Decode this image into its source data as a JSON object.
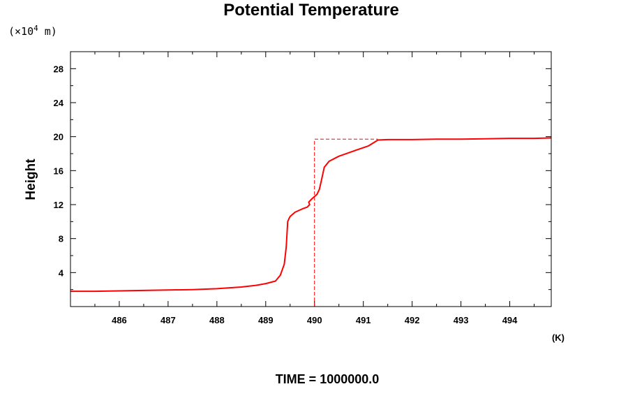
{
  "chart_data": {
    "type": "line",
    "title": "Potential Temperature",
    "ylabel": "Height",
    "y_unit_prefix": "(×10",
    "y_unit_exponent": "4",
    "y_unit_suffix": " m)",
    "x_unit": "(K)",
    "footer": "TIME = 1000000.0",
    "xlim": [
      485.0,
      494.85
    ],
    "ylim": [
      0.0,
      30.0
    ],
    "x_ticks": [
      486,
      487,
      488,
      489,
      490,
      491,
      492,
      493,
      494
    ],
    "y_ticks": [
      4,
      8,
      12,
      16,
      20,
      24,
      28
    ],
    "grid": false,
    "legend": "none",
    "series": [
      {
        "style": "solid",
        "color": "#ff0000",
        "x": [
          485.0,
          485.5,
          486.0,
          486.5,
          487.0,
          487.5,
          488.0,
          488.5,
          488.8,
          489.0,
          489.2,
          489.3,
          489.38,
          489.42,
          489.45,
          489.48,
          489.5,
          489.6,
          489.75,
          489.85,
          489.9,
          489.88,
          489.95,
          490.05,
          490.1,
          490.14,
          490.2,
          490.3,
          490.5,
          490.8,
          491.1,
          491.3,
          491.5,
          492.0,
          492.5,
          493.0,
          493.5,
          494.0,
          494.5,
          494.85
        ],
        "y": [
          1.8,
          1.8,
          1.85,
          1.9,
          1.95,
          2.0,
          2.1,
          2.3,
          2.5,
          2.7,
          3.0,
          3.7,
          5.0,
          7.0,
          10.0,
          10.4,
          10.6,
          11.1,
          11.5,
          11.7,
          12.0,
          12.3,
          12.7,
          13.2,
          13.8,
          14.8,
          16.4,
          17.1,
          17.7,
          18.3,
          18.9,
          19.6,
          19.65,
          19.65,
          19.7,
          19.7,
          19.75,
          19.8,
          19.8,
          19.85
        ]
      },
      {
        "style": "dashed",
        "color": "#ff0000",
        "x": [
          490.0,
          490.0,
          491.3
        ],
        "y": [
          0.0,
          19.7,
          19.7
        ]
      }
    ]
  }
}
